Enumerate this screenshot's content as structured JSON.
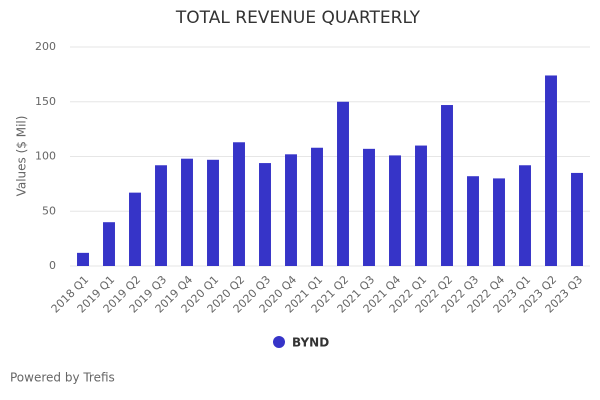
{
  "chart_data": {
    "type": "bar",
    "title": "TOTAL REVENUE QUARTERLY",
    "ylabel": "Values ($ Mil)",
    "categories": [
      "2018 Q1",
      "2019 Q1",
      "2019 Q2",
      "2019 Q3",
      "2019 Q4",
      "2020 Q1",
      "2020 Q2",
      "2020 Q3",
      "2020 Q4",
      "2021 Q1",
      "2021 Q2",
      "2021 Q3",
      "2021 Q4",
      "2022 Q1",
      "2022 Q2",
      "2022 Q3",
      "2022 Q4",
      "2023 Q1",
      "2023 Q2",
      "2023 Q3"
    ],
    "series": [
      {
        "name": "BYND",
        "color": "#3634c8",
        "values": [
          12,
          40,
          67,
          92,
          98,
          97,
          113,
          94,
          102,
          108,
          150,
          107,
          101,
          110,
          147,
          82,
          80,
          92,
          174,
          85
        ]
      }
    ],
    "ylim": [
      0,
      200
    ],
    "yticks": [
      0,
      50,
      100,
      150,
      200
    ],
    "grid": true
  },
  "footer": "Powered by Trefis"
}
